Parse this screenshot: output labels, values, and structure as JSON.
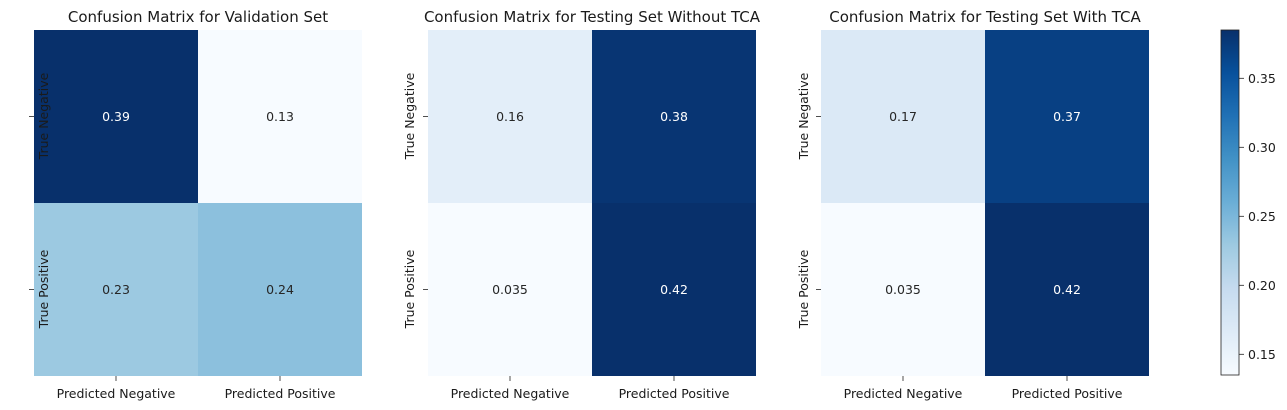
{
  "chart_data": [
    {
      "type": "heatmap",
      "title": "Confusion Matrix for Validation Set",
      "x_categories": [
        "Predicted Negative",
        "Predicted Positive"
      ],
      "y_categories": [
        "True Negative",
        "True Positive"
      ],
      "values": [
        [
          0.39,
          0.13
        ],
        [
          0.23,
          0.24
        ]
      ],
      "labels": [
        [
          "0.39",
          "0.13"
        ],
        [
          "0.23",
          "0.24"
        ]
      ]
    },
    {
      "type": "heatmap",
      "title": "Confusion Matrix for Testing Set Without TCA",
      "x_categories": [
        "Predicted Negative",
        "Predicted Positive"
      ],
      "y_categories": [
        "True Negative",
        "True Positive"
      ],
      "values": [
        [
          0.16,
          0.38
        ],
        [
          0.035,
          0.42
        ]
      ],
      "labels": [
        [
          "0.16",
          "0.38"
        ],
        [
          "0.035",
          "0.42"
        ]
      ]
    },
    {
      "type": "heatmap",
      "title": "Confusion Matrix for Testing Set With TCA",
      "x_categories": [
        "Predicted Negative",
        "Predicted Positive"
      ],
      "y_categories": [
        "True Negative",
        "True Positive"
      ],
      "values": [
        [
          0.17,
          0.37
        ],
        [
          0.035,
          0.42
        ]
      ],
      "labels": [
        [
          "0.17",
          "0.37"
        ],
        [
          "0.035",
          "0.42"
        ]
      ]
    }
  ],
  "colorbar": {
    "colormap": "Blues",
    "range": [
      0.135,
      0.385
    ],
    "ticks": [
      0.15,
      0.2,
      0.25,
      0.3,
      0.35
    ],
    "tick_labels": [
      "0.15",
      "0.20",
      "0.25",
      "0.30",
      "0.35"
    ]
  }
}
